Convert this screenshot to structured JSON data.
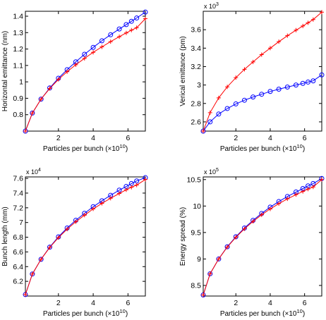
{
  "chart_data": [
    {
      "type": "line",
      "title": "",
      "xlabel": "Particles per bunch (×10",
      "xlabel_exp": "10",
      "xlabel_end": ")",
      "ylabel": "Horizontal emittance (nm)",
      "scale_note": "",
      "scale_exp": "",
      "xlim": [
        0.1,
        7.0
      ],
      "ylim": [
        0.7,
        1.43
      ],
      "xticks": [
        2,
        4,
        6
      ],
      "yticks": [
        0.8,
        0.9,
        1.0,
        1.1,
        1.2,
        1.3,
        1.4
      ],
      "ytick_labels": [
        "0.8",
        "0.9",
        "1",
        "1.1",
        "1.2",
        "1.3",
        "1.4"
      ],
      "grid": false,
      "series": [
        {
          "color": "#0000ff",
          "marker": "circle",
          "x": [
            0.1,
            0.5,
            1.0,
            1.5,
            2.0,
            2.5,
            3.0,
            3.5,
            4.0,
            4.5,
            5.0,
            5.5,
            5.9,
            6.2,
            6.5,
            7.0
          ],
          "y": [
            0.7,
            0.81,
            0.895,
            0.963,
            1.022,
            1.074,
            1.122,
            1.168,
            1.21,
            1.25,
            1.287,
            1.322,
            1.349,
            1.369,
            1.389,
            1.425
          ]
        },
        {
          "color": "#ff0000",
          "marker": "plus",
          "x": [
            0.1,
            0.5,
            1.0,
            1.5,
            2.0,
            2.5,
            3.0,
            3.5,
            4.0,
            4.5,
            5.0,
            5.5,
            5.9,
            6.2,
            6.5,
            7.0
          ],
          "y": [
            0.7,
            0.81,
            0.895,
            0.96,
            1.015,
            1.062,
            1.104,
            1.143,
            1.18,
            1.213,
            1.245,
            1.275,
            1.298,
            1.315,
            1.33,
            1.385
          ]
        }
      ]
    },
    {
      "type": "line",
      "title": "",
      "xlabel": "Particles per bunch (×10",
      "xlabel_exp": "10",
      "xlabel_end": ")",
      "ylabel": "Verical emittance (pm)",
      "scale_note": "x 10",
      "scale_exp": "3",
      "xlim": [
        0.1,
        7.0
      ],
      "ylim": [
        2.5,
        3.8
      ],
      "xticks": [
        2,
        4,
        6
      ],
      "yticks": [
        2.6,
        2.8,
        3.0,
        3.2,
        3.4,
        3.6
      ],
      "ytick_labels": [
        "2.6",
        "2.8",
        "3",
        "3.2",
        "3.4",
        "3.6"
      ],
      "grid": false,
      "series": [
        {
          "color": "#0000ff",
          "marker": "circle",
          "x": [
            0.1,
            0.5,
            1.0,
            1.5,
            2.0,
            2.5,
            3.0,
            3.5,
            4.0,
            4.5,
            5.0,
            5.5,
            5.9,
            6.2,
            6.5,
            7.0
          ],
          "y": [
            2.5,
            2.6,
            2.685,
            2.745,
            2.795,
            2.835,
            2.87,
            2.9,
            2.93,
            2.955,
            2.978,
            3.0,
            3.018,
            3.032,
            3.045,
            3.11
          ]
        },
        {
          "color": "#ff0000",
          "marker": "plus",
          "x": [
            0.1,
            0.5,
            1.0,
            1.5,
            2.0,
            2.5,
            3.0,
            3.5,
            4.0,
            4.5,
            5.0,
            5.5,
            5.9,
            6.2,
            6.5,
            7.0
          ],
          "y": [
            2.5,
            2.7,
            2.86,
            2.98,
            3.08,
            3.17,
            3.25,
            3.33,
            3.4,
            3.47,
            3.535,
            3.595,
            3.64,
            3.675,
            3.71,
            3.79
          ]
        }
      ]
    },
    {
      "type": "line",
      "title": "",
      "xlabel": "Particles per bunch (×10",
      "xlabel_exp": "10",
      "xlabel_end": ")",
      "ylabel": "Bunch length (mm)",
      "scale_note": "x 10",
      "scale_exp": "4",
      "xlim": [
        0.1,
        7.0
      ],
      "ylim": [
        6.0,
        7.62
      ],
      "xticks": [
        2,
        4,
        6
      ],
      "yticks": [
        6.2,
        6.4,
        6.6,
        6.8,
        7.0,
        7.2,
        7.4,
        7.6
      ],
      "ytick_labels": [
        "6.2",
        "6.4",
        "6.6",
        "6.8",
        "7",
        "7.2",
        "7.4",
        "7.6"
      ],
      "grid": false,
      "series": [
        {
          "color": "#0000ff",
          "marker": "circle",
          "x": [
            0.1,
            0.5,
            1.0,
            1.5,
            2.0,
            2.5,
            3.0,
            3.5,
            4.0,
            4.5,
            5.0,
            5.5,
            5.9,
            6.2,
            6.5,
            7.0
          ],
          "y": [
            6.02,
            6.3,
            6.5,
            6.665,
            6.805,
            6.925,
            7.03,
            7.125,
            7.215,
            7.295,
            7.37,
            7.44,
            7.49,
            7.53,
            7.565,
            7.61
          ]
        },
        {
          "color": "#ff0000",
          "marker": "plus",
          "x": [
            0.1,
            0.5,
            1.0,
            1.5,
            2.0,
            2.5,
            3.0,
            3.5,
            4.0,
            4.5,
            5.0,
            5.5,
            5.9,
            6.2,
            6.5,
            7.0
          ],
          "y": [
            6.02,
            6.3,
            6.5,
            6.66,
            6.795,
            6.91,
            7.01,
            7.1,
            7.185,
            7.26,
            7.33,
            7.395,
            7.445,
            7.48,
            7.51,
            7.585
          ]
        }
      ]
    },
    {
      "type": "line",
      "title": "",
      "xlabel": "Particles per bunch (×10",
      "xlabel_exp": "10",
      "xlabel_end": ")",
      "ylabel": "Energy spread (%)",
      "scale_note": "x 10",
      "scale_exp": "5",
      "xlim": [
        0.1,
        7.0
      ],
      "ylim": [
        8.3,
        10.55
      ],
      "xticks": [
        2,
        4,
        6
      ],
      "yticks": [
        8.5,
        9.0,
        9.5,
        10.0,
        10.5
      ],
      "ytick_labels": [
        "8.5",
        "9",
        "9.5",
        "10",
        "10.5"
      ],
      "grid": false,
      "series": [
        {
          "color": "#0000ff",
          "marker": "circle",
          "x": [
            0.1,
            0.5,
            1.0,
            1.5,
            2.0,
            2.5,
            3.0,
            3.5,
            4.0,
            4.5,
            5.0,
            5.5,
            5.9,
            6.2,
            6.5,
            7.0
          ],
          "y": [
            8.32,
            8.72,
            9.0,
            9.23,
            9.42,
            9.585,
            9.73,
            9.86,
            9.98,
            10.085,
            10.18,
            10.265,
            10.33,
            10.38,
            10.425,
            10.52
          ]
        },
        {
          "color": "#ff0000",
          "marker": "plus",
          "x": [
            0.1,
            0.5,
            1.0,
            1.5,
            2.0,
            2.5,
            3.0,
            3.5,
            4.0,
            4.5,
            5.0,
            5.5,
            5.9,
            6.2,
            6.5,
            7.0
          ],
          "y": [
            8.32,
            8.72,
            9.0,
            9.225,
            9.41,
            9.57,
            9.71,
            9.835,
            9.945,
            10.045,
            10.135,
            10.215,
            10.275,
            10.32,
            10.36,
            10.5
          ]
        }
      ]
    }
  ]
}
